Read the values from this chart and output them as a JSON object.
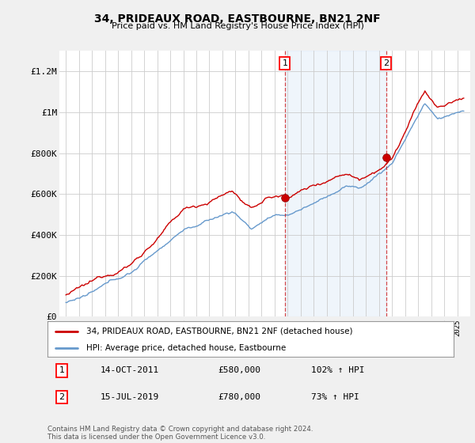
{
  "title": "34, PRIDEAUX ROAD, EASTBOURNE, BN21 2NF",
  "subtitle": "Price paid vs. HM Land Registry's House Price Index (HPI)",
  "ylabel_ticks": [
    "£0",
    "£200K",
    "£400K",
    "£600K",
    "£800K",
    "£1M",
    "£1.2M"
  ],
  "ytick_values": [
    0,
    200000,
    400000,
    600000,
    800000,
    1000000,
    1200000
  ],
  "ylim": [
    0,
    1300000
  ],
  "red_color": "#cc0000",
  "blue_color": "#6699cc",
  "sale1": {
    "date_label": "14-OCT-2011",
    "price": 580000,
    "hpi_pct": "102%",
    "year": 2011.79
  },
  "sale2": {
    "date_label": "15-JUL-2019",
    "price": 780000,
    "hpi_pct": "73%",
    "year": 2019.54
  },
  "legend_red": "34, PRIDEAUX ROAD, EASTBOURNE, BN21 2NF (detached house)",
  "legend_blue": "HPI: Average price, detached house, Eastbourne",
  "footnote": "Contains HM Land Registry data © Crown copyright and database right 2024.\nThis data is licensed under the Open Government Licence v3.0.",
  "background_plot": "#ffffff",
  "background_fig": "#f0f0f0",
  "shade_color": "#ddeeff",
  "grid_color": "#cccccc"
}
